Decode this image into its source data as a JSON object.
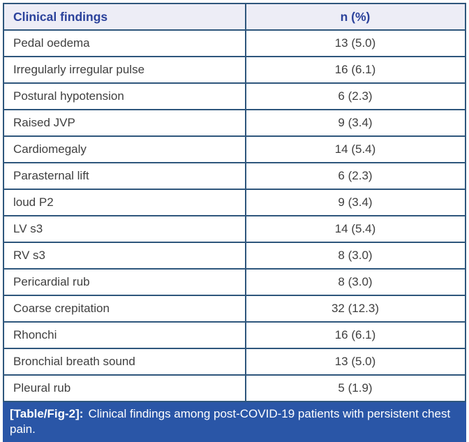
{
  "table": {
    "columns": [
      "Clinical findings",
      "n (%)"
    ],
    "rows": [
      {
        "finding": "Pedal oedema",
        "value": "13 (5.0)"
      },
      {
        "finding": "Irregularly irregular pulse",
        "value": "16 (6.1)"
      },
      {
        "finding": "Postural hypotension",
        "value": "6 (2.3)"
      },
      {
        "finding": "Raised JVP",
        "value": "9 (3.4)"
      },
      {
        "finding": "Cardiomegaly",
        "value": "14 (5.4)"
      },
      {
        "finding": "Parasternal lift",
        "value": "6 (2.3)"
      },
      {
        "finding": "loud P2",
        "value": "9 (3.4)"
      },
      {
        "finding": "LV s3",
        "value": "14 (5.4)"
      },
      {
        "finding": "RV s3",
        "value": "8 (3.0)"
      },
      {
        "finding": "Pericardial rub",
        "value": "8 (3.0)"
      },
      {
        "finding": "Coarse crepitation",
        "value": "32 (12.3)"
      },
      {
        "finding": "Rhonchi",
        "value": "16 (6.1)"
      },
      {
        "finding": "Bronchial breath sound",
        "value": "13 (5.0)"
      },
      {
        "finding": "Pleural rub",
        "value": "5 (1.9)"
      }
    ]
  },
  "caption": {
    "label": "[Table/Fig-2]:",
    "text": "Clinical findings among post-COVID-19 patients with persistent chest pain."
  },
  "colors": {
    "border": "#2e567c",
    "header_bg": "#ededf6",
    "header_text": "#2b429b",
    "body_text": "#3f3f3f",
    "caption_bg": "#2a56a7",
    "caption_text": "#ffffff"
  }
}
